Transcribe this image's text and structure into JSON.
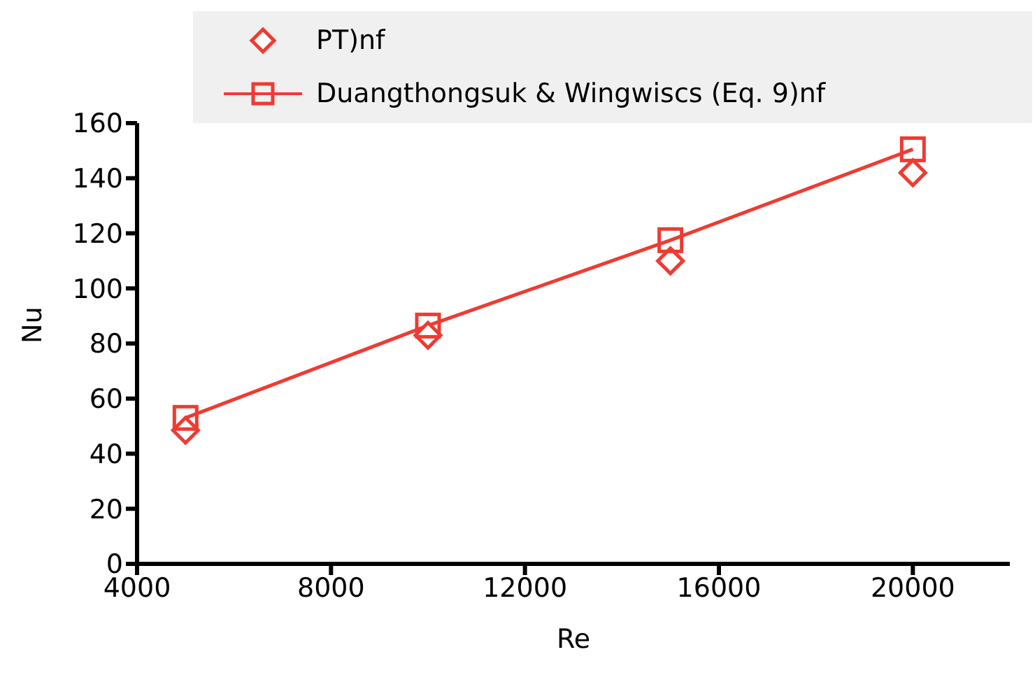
{
  "chart_data": {
    "type": "line",
    "xlabel": "Re",
    "ylabel": "Nu",
    "x": [
      5000,
      10000,
      15000,
      20000
    ],
    "series": [
      {
        "name": "PT)nf",
        "type": "scatter",
        "marker": "diamond",
        "color": "#ee3b33",
        "values": [
          48.5,
          83,
          110,
          142
        ]
      },
      {
        "name": "Duangthongsuk & Wingwiscs (Eq. 9)nf",
        "marker": "square",
        "color": "#ee3b33",
        "values": [
          53,
          86.5,
          117.5,
          150.5
        ]
      }
    ],
    "xlim": [
      4000,
      22000
    ],
    "xticks": [
      4000,
      8000,
      12000,
      16000,
      20000
    ],
    "ylim": [
      0,
      160
    ],
    "yticks": [
      0,
      20,
      40,
      60,
      80,
      100,
      120,
      140,
      160
    ],
    "grid": false,
    "legend": "top"
  }
}
